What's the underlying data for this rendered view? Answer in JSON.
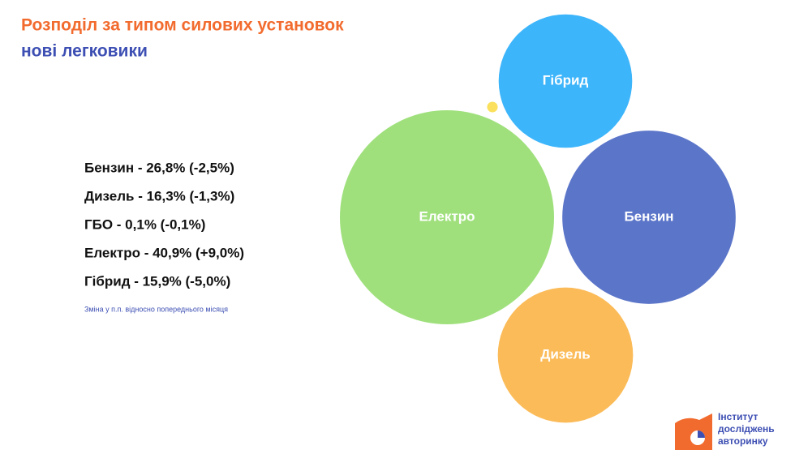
{
  "chart_data": {
    "type": "bubble",
    "title": "Розподіл за типом силових установок",
    "subtitle": "нові легковики",
    "categories": [
      "Бензин",
      "Дизель",
      "ГБО",
      "Електро",
      "Гібрид"
    ],
    "values": [
      26.8,
      16.3,
      0.1,
      40.9,
      15.9
    ],
    "value_labels": [
      "Бензин - 26,8% (-2,5%)",
      "Дизель - 16,3% (-1,3%)",
      "ГБО - 0,1% (-0,1%)",
      "Електро - 40,9% (+9,0%)",
      "Гібрид - 15,9% (-5,0%)"
    ],
    "colors": [
      "#5b75c9",
      "#fbbb58",
      "#fae05c",
      "#9fe07c",
      "#3db5fb"
    ],
    "bubble_labels": [
      "Бензин",
      "Дизель",
      null,
      "Електро",
      "Гібрид"
    ],
    "note": "Зміна у п.п. відносно попереднього місяця"
  },
  "logo": {
    "lines": [
      "Інститут",
      "досліджень",
      "авторинку"
    ]
  }
}
